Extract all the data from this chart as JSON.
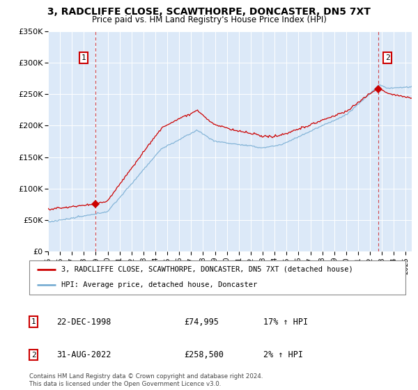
{
  "title": "3, RADCLIFFE CLOSE, SCAWTHORPE, DONCASTER, DN5 7XT",
  "subtitle": "Price paid vs. HM Land Registry's House Price Index (HPI)",
  "ylim": [
    0,
    350000
  ],
  "yticks": [
    0,
    50000,
    100000,
    150000,
    200000,
    250000,
    300000,
    350000
  ],
  "ytick_labels": [
    "£0",
    "£50K",
    "£100K",
    "£150K",
    "£200K",
    "£250K",
    "£300K",
    "£350K"
  ],
  "background_color": "#dce9f8",
  "legend_line1": "3, RADCLIFFE CLOSE, SCAWTHORPE, DONCASTER, DN5 7XT (detached house)",
  "legend_line2": "HPI: Average price, detached house, Doncaster",
  "red_line_color": "#cc0000",
  "blue_line_color": "#7bafd4",
  "point1_date": "22-DEC-1998",
  "point1_price": 74995,
  "point1_hpi": "17% ↑ HPI",
  "point1_x": 1998.97,
  "point2_date": "31-AUG-2022",
  "point2_price": 258500,
  "point2_hpi": "2% ↑ HPI",
  "point2_x": 2022.67,
  "footer": "Contains HM Land Registry data © Crown copyright and database right 2024.\nThis data is licensed under the Open Government Licence v3.0.",
  "xmin": 1995.0,
  "xmax": 2025.5
}
